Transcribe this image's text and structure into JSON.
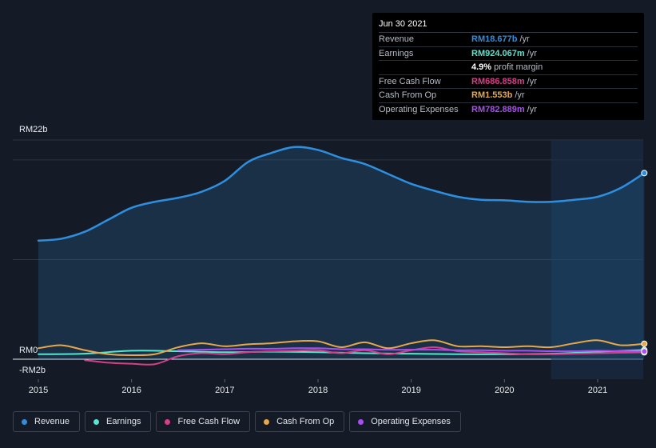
{
  "tooltip": {
    "date": "Jun 30 2021",
    "rows": [
      {
        "label": "Revenue",
        "value": "RM18.677b",
        "unit": "/yr",
        "color": "#2e8fe0"
      },
      {
        "label": "Earnings",
        "value": "RM924.067m",
        "unit": "/yr",
        "color": "#55e6cf"
      },
      {
        "label": "",
        "value": "4.9%",
        "unit": "profit margin",
        "color": "#ffffff"
      },
      {
        "label": "Free Cash Flow",
        "value": "RM686.858m",
        "unit": "/yr",
        "color": "#d63f87"
      },
      {
        "label": "Cash From Op",
        "value": "RM1.553b",
        "unit": "/yr",
        "color": "#e8a74a"
      },
      {
        "label": "Operating Expenses",
        "value": "RM782.889m",
        "unit": "/yr",
        "color": "#a84ff2"
      }
    ]
  },
  "legend": [
    {
      "label": "Revenue",
      "color": "#2e8fe0",
      "icon": "dot"
    },
    {
      "label": "Earnings",
      "color": "#55e6cf",
      "icon": "dot"
    },
    {
      "label": "Free Cash Flow",
      "color": "#d63f87",
      "icon": "dot"
    },
    {
      "label": "Cash From Op",
      "color": "#e8a74a",
      "icon": "dot"
    },
    {
      "label": "Operating Expenses",
      "color": "#a84ff2",
      "icon": "dot"
    }
  ],
  "chart_data": {
    "type": "area",
    "ylim": [
      -2,
      22
    ],
    "xlim": [
      2015,
      2021.5
    ],
    "y_tick_labels": [
      "RM22b",
      "RM0",
      "-RM2b"
    ],
    "x_tick_labels": [
      "2015",
      "2016",
      "2017",
      "2018",
      "2019",
      "2020",
      "2021"
    ],
    "x_ticks": [
      2015,
      2016,
      2017,
      2018,
      2019,
      2020,
      2021
    ],
    "highlight_from": 2020.5,
    "grid": true,
    "series": [
      {
        "name": "Revenue",
        "color": "#2e8fe0",
        "fill": true,
        "x": [
          2015,
          2015.25,
          2015.5,
          2015.75,
          2016,
          2016.25,
          2016.5,
          2016.75,
          2017,
          2017.25,
          2017.5,
          2017.75,
          2018,
          2018.25,
          2018.5,
          2018.75,
          2019,
          2019.25,
          2019.5,
          2019.75,
          2020,
          2020.25,
          2020.5,
          2020.75,
          2021,
          2021.25,
          2021.5
        ],
        "y": [
          11.9,
          12.1,
          12.8,
          14.0,
          15.2,
          15.8,
          16.2,
          16.8,
          17.9,
          19.8,
          20.7,
          21.3,
          21.0,
          20.2,
          19.6,
          18.6,
          17.6,
          16.9,
          16.3,
          16.0,
          15.95,
          15.8,
          15.8,
          16.0,
          16.3,
          17.2,
          18.68
        ]
      },
      {
        "name": "Earnings",
        "color": "#55e6cf",
        "fill": false,
        "x": [
          2015,
          2015.5,
          2016,
          2016.5,
          2017,
          2017.5,
          2018,
          2018.5,
          2019,
          2019.5,
          2020,
          2020.5,
          2021,
          2021.5
        ],
        "y": [
          0.5,
          0.55,
          0.85,
          0.8,
          0.7,
          0.75,
          0.7,
          0.6,
          0.55,
          0.5,
          0.5,
          0.55,
          0.75,
          0.92
        ]
      },
      {
        "name": "Free Cash Flow",
        "color": "#d63f87",
        "fill": false,
        "x": [
          2015.5,
          2015.75,
          2016,
          2016.25,
          2016.5,
          2016.75,
          2017,
          2017.25,
          2017.5,
          2017.75,
          2018,
          2018.25,
          2018.5,
          2018.75,
          2019,
          2019.25,
          2019.5,
          2019.75,
          2020,
          2020.25,
          2020.5,
          2020.75,
          2021,
          2021.25,
          2021.5
        ],
        "y": [
          -0.1,
          -0.35,
          -0.45,
          -0.5,
          0.3,
          0.6,
          0.5,
          0.7,
          0.8,
          0.85,
          0.9,
          0.6,
          0.9,
          0.5,
          0.9,
          1.2,
          0.8,
          0.7,
          0.6,
          0.5,
          0.5,
          0.55,
          0.6,
          0.65,
          0.69
        ]
      },
      {
        "name": "Cash From Op",
        "color": "#e8a74a",
        "fill": false,
        "x": [
          2015,
          2015.25,
          2015.5,
          2015.75,
          2016,
          2016.25,
          2016.5,
          2016.75,
          2017,
          2017.25,
          2017.5,
          2017.75,
          2018,
          2018.25,
          2018.5,
          2018.75,
          2019,
          2019.25,
          2019.5,
          2019.75,
          2020,
          2020.25,
          2020.5,
          2020.75,
          2021,
          2021.25,
          2021.5
        ],
        "y": [
          1.1,
          1.4,
          0.9,
          0.5,
          0.4,
          0.5,
          1.2,
          1.6,
          1.3,
          1.5,
          1.6,
          1.8,
          1.8,
          1.2,
          1.7,
          1.1,
          1.6,
          1.9,
          1.3,
          1.3,
          1.2,
          1.3,
          1.2,
          1.6,
          1.9,
          1.4,
          1.55
        ]
      },
      {
        "name": "Operating Expenses",
        "color": "#a84ff2",
        "fill": false,
        "x": [
          2016.5,
          2016.75,
          2017,
          2017.25,
          2017.5,
          2017.75,
          2018,
          2018.25,
          2018.5,
          2018.75,
          2019,
          2019.25,
          2019.5,
          2019.75,
          2020,
          2020.25,
          2020.5,
          2020.75,
          2021,
          2021.25,
          2021.5
        ],
        "y": [
          0.9,
          0.95,
          1.0,
          1.05,
          1.05,
          1.1,
          1.1,
          1.0,
          1.0,
          0.95,
          0.95,
          0.95,
          0.9,
          0.9,
          0.85,
          0.85,
          0.8,
          0.8,
          0.85,
          0.8,
          0.78
        ]
      }
    ]
  }
}
